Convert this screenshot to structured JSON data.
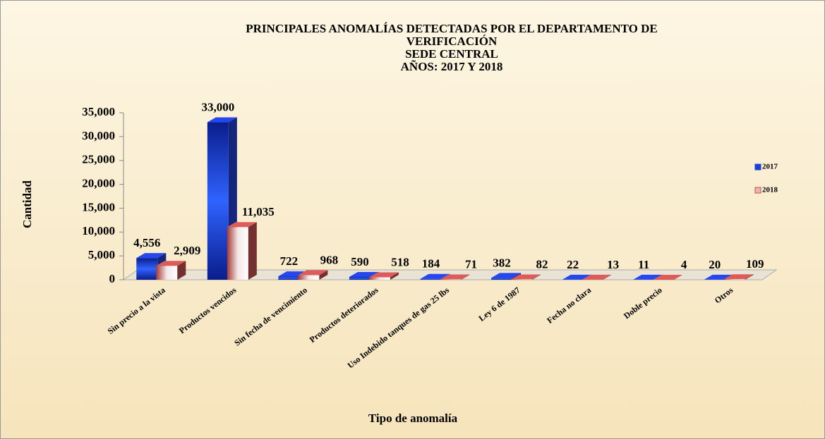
{
  "chart_data": {
    "type": "bar3d",
    "title": [
      "PRINCIPALES ANOMALÍAS DETECTADAS POR EL DEPARTAMENTO DE",
      "VERIFICACIÓN",
      "SEDE CENTRAL",
      "AÑOS: 2017 Y 2018"
    ],
    "x_label": "Tipo de anomalía",
    "y_label": "Cantidad",
    "categories": [
      "Sin precio a la vista",
      "Productos vencidos",
      "Sin fecha de vencimiento",
      "Productos deteriorados",
      "Uso Indebido tanques de gas 25 lbs",
      "Ley 6 de 1987",
      "Fecha no clara",
      "Doble precio",
      "Otros"
    ],
    "series": [
      {
        "name": "2017",
        "color": "#1f3fcf",
        "values": [
          4556,
          33000,
          722,
          590,
          184,
          382,
          22,
          11,
          20
        ],
        "value_labels": [
          "4,556",
          "33,000",
          "722",
          "590",
          "184",
          "382",
          "22",
          "11",
          "20"
        ]
      },
      {
        "name": "2018",
        "color": "#c0504d",
        "values": [
          2909,
          11035,
          968,
          518,
          71,
          82,
          13,
          4,
          109
        ],
        "value_labels": [
          "2,909",
          "11,035",
          "968",
          "518",
          "71",
          "82",
          "13",
          "4",
          "109"
        ]
      }
    ],
    "ylim": [
      0,
      35000
    ],
    "yticks": [
      0,
      {
        "value": 5000,
        "label": "5,000"
      },
      {
        "value": 10000,
        "label": "10,000"
      },
      {
        "value": 15000,
        "label": "15,000"
      },
      {
        "value": 20000,
        "label": "20,000"
      },
      {
        "value": 25000,
        "label": "25,000"
      },
      {
        "value": 30000,
        "label": "30,000"
      },
      {
        "value": 35000,
        "label": "35,000"
      }
    ],
    "legend": "right"
  }
}
